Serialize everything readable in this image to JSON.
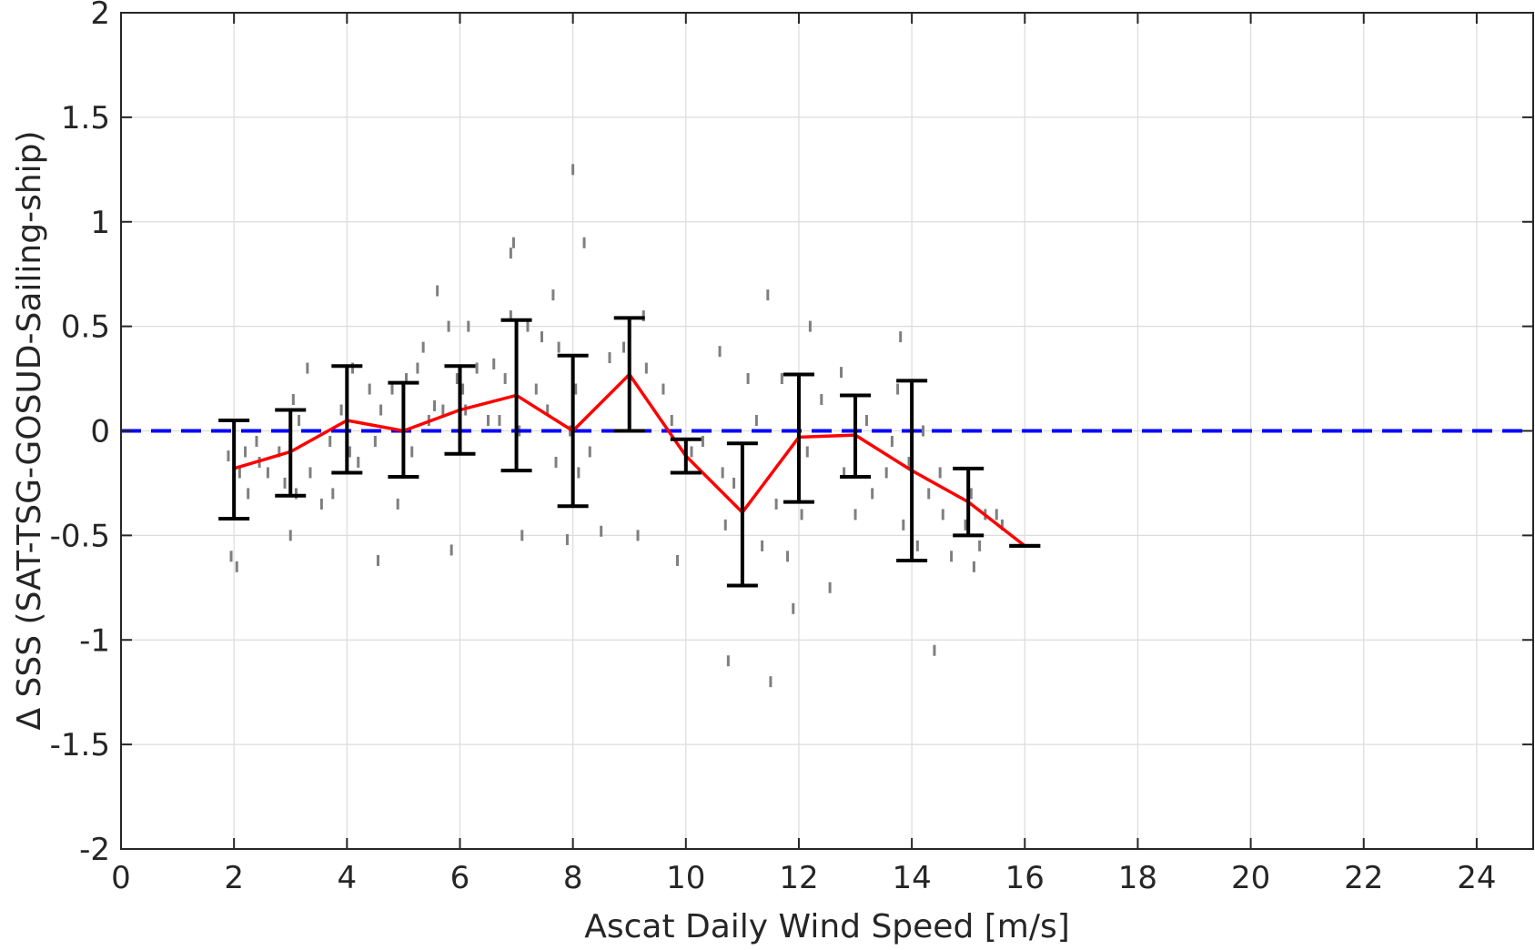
{
  "chart_data": {
    "type": "scatter",
    "title": "",
    "xlabel": "Ascat Daily Wind Speed [m/s]",
    "ylabel": "Δ SSS (SAT-TSG-GOSUD-Sailing-ship)",
    "xlim": [
      0,
      25
    ],
    "ylim": [
      -2,
      2
    ],
    "x_ticks": [
      0,
      2,
      4,
      6,
      8,
      10,
      12,
      14,
      16,
      18,
      20,
      22,
      24
    ],
    "y_ticks": [
      -2,
      -1.5,
      -1,
      -0.5,
      0,
      0.5,
      1,
      1.5,
      2
    ],
    "x_tick_labels": [
      "0",
      "2",
      "4",
      "6",
      "8",
      "10",
      "12",
      "14",
      "16",
      "18",
      "20",
      "22",
      "24"
    ],
    "y_tick_labels": [
      "-2",
      "-1.5",
      "-1",
      "-0.5",
      "0",
      "0.5",
      "1",
      "1.5",
      "2"
    ],
    "grid": true,
    "legend": "none",
    "colors": {
      "scatter": "#7f7f7f",
      "mean_line": "#ff0000",
      "error_bars": "#000000",
      "zero_line": "#0000ff",
      "grid": "#dcdcdc",
      "axis": "#262626"
    },
    "series": [
      {
        "kind": "scatter",
        "points": [
          [
            1.9,
            -0.12
          ],
          [
            1.95,
            -0.6
          ],
          [
            2.05,
            -0.65
          ],
          [
            2.1,
            -0.2
          ],
          [
            2.2,
            -0.1
          ],
          [
            2.25,
            -0.3
          ],
          [
            2.4,
            -0.05
          ],
          [
            2.45,
            -0.15
          ],
          [
            2.6,
            -0.2
          ],
          [
            2.8,
            -0.1
          ],
          [
            2.9,
            -0.25
          ],
          [
            3.05,
            0.15
          ],
          [
            3.1,
            -0.3
          ],
          [
            3.0,
            -0.5
          ],
          [
            3.15,
            0.05
          ],
          [
            3.3,
            0.3
          ],
          [
            3.35,
            -0.2
          ],
          [
            3.55,
            -0.35
          ],
          [
            3.7,
            -0.05
          ],
          [
            3.75,
            -0.3
          ],
          [
            3.9,
            0.1
          ],
          [
            4.05,
            -0.1
          ],
          [
            4.1,
            0.3
          ],
          [
            4.2,
            -0.15
          ],
          [
            4.4,
            0.2
          ],
          [
            4.5,
            -0.05
          ],
          [
            4.55,
            -0.62
          ],
          [
            4.6,
            0.1
          ],
          [
            4.8,
            0.2
          ],
          [
            4.9,
            -0.35
          ],
          [
            5.05,
            0.25
          ],
          [
            5.15,
            -0.1
          ],
          [
            5.25,
            0.3
          ],
          [
            5.35,
            0.4
          ],
          [
            5.45,
            0.05
          ],
          [
            5.55,
            0.12
          ],
          [
            5.6,
            0.67
          ],
          [
            5.7,
            0.1
          ],
          [
            5.8,
            0.5
          ],
          [
            5.85,
            -0.57
          ],
          [
            5.95,
            0.25
          ],
          [
            6.05,
            0.2
          ],
          [
            6.1,
            0.1
          ],
          [
            6.15,
            0.5
          ],
          [
            6.3,
            0.3
          ],
          [
            6.5,
            0.05
          ],
          [
            6.6,
            0.32
          ],
          [
            6.7,
            0.05
          ],
          [
            6.8,
            0.25
          ],
          [
            6.9,
            0.55
          ],
          [
            6.9,
            0.85
          ],
          [
            6.95,
            0.9
          ],
          [
            7.0,
            0.4
          ],
          [
            7.05,
            0.0
          ],
          [
            7.1,
            -0.5
          ],
          [
            7.2,
            0.5
          ],
          [
            7.35,
            0.2
          ],
          [
            7.45,
            0.45
          ],
          [
            7.55,
            0.1
          ],
          [
            7.65,
            0.65
          ],
          [
            7.7,
            -0.15
          ],
          [
            7.75,
            0.4
          ],
          [
            7.9,
            -0.52
          ],
          [
            7.95,
            0.0
          ],
          [
            8.0,
            1.25
          ],
          [
            8.05,
            0.2
          ],
          [
            8.1,
            -0.2
          ],
          [
            8.2,
            0.9
          ],
          [
            8.3,
            -0.1
          ],
          [
            8.5,
            -0.48
          ],
          [
            8.65,
            0.35
          ],
          [
            8.9,
            0.4
          ],
          [
            9.0,
            0.2
          ],
          [
            9.15,
            -0.5
          ],
          [
            9.25,
            0.55
          ],
          [
            9.3,
            0.3
          ],
          [
            9.6,
            0.2
          ],
          [
            9.75,
            0.05
          ],
          [
            9.85,
            -0.62
          ],
          [
            10.1,
            -0.1
          ],
          [
            10.3,
            -0.05
          ],
          [
            10.6,
            0.38
          ],
          [
            10.65,
            -0.2
          ],
          [
            10.7,
            -0.45
          ],
          [
            10.75,
            -1.1
          ],
          [
            10.85,
            -0.25
          ],
          [
            11.0,
            -0.55
          ],
          [
            11.1,
            0.25
          ],
          [
            11.25,
            0.05
          ],
          [
            11.35,
            -0.55
          ],
          [
            11.45,
            0.65
          ],
          [
            11.5,
            -1.2
          ],
          [
            11.6,
            -0.35
          ],
          [
            11.7,
            0.25
          ],
          [
            11.8,
            -0.6
          ],
          [
            11.9,
            -0.85
          ],
          [
            12.05,
            -0.4
          ],
          [
            12.15,
            -0.1
          ],
          [
            12.2,
            0.5
          ],
          [
            12.4,
            0.15
          ],
          [
            12.55,
            -0.75
          ],
          [
            12.75,
            0.28
          ],
          [
            12.8,
            -0.2
          ],
          [
            13.0,
            -0.4
          ],
          [
            13.2,
            0.05
          ],
          [
            13.3,
            -0.3
          ],
          [
            13.55,
            -0.2
          ],
          [
            13.65,
            -0.05
          ],
          [
            13.75,
            0.2
          ],
          [
            13.8,
            0.45
          ],
          [
            13.85,
            -0.45
          ],
          [
            13.95,
            -0.15
          ],
          [
            14.1,
            -0.55
          ],
          [
            14.2,
            0.0
          ],
          [
            14.3,
            -0.3
          ],
          [
            14.4,
            -1.05
          ],
          [
            14.5,
            -0.2
          ],
          [
            14.55,
            -0.4
          ],
          [
            14.7,
            -0.6
          ],
          [
            14.95,
            -0.45
          ],
          [
            15.05,
            -0.3
          ],
          [
            15.1,
            -0.65
          ],
          [
            15.2,
            -0.55
          ],
          [
            15.3,
            -0.4
          ],
          [
            15.5,
            -0.4
          ],
          [
            15.6,
            -0.45
          ]
        ]
      },
      {
        "kind": "line",
        "x": [
          2,
          3,
          4,
          5,
          6,
          7,
          8,
          9,
          10,
          11,
          12,
          13,
          14,
          15,
          16
        ],
        "y": [
          -0.18,
          -0.1,
          0.05,
          0.0,
          0.1,
          0.17,
          0.0,
          0.27,
          -0.12,
          -0.39,
          -0.03,
          -0.02,
          -0.19,
          -0.34,
          -0.55
        ]
      },
      {
        "kind": "errorbar",
        "x": [
          2,
          3,
          4,
          5,
          6,
          7,
          8,
          9,
          10,
          11,
          12,
          13,
          14,
          15,
          16
        ],
        "low": [
          -0.42,
          -0.31,
          -0.2,
          -0.22,
          -0.11,
          -0.19,
          -0.36,
          0.0,
          -0.2,
          -0.74,
          -0.34,
          -0.22,
          -0.62,
          -0.5,
          -0.55
        ],
        "high": [
          0.05,
          0.1,
          0.31,
          0.23,
          0.31,
          0.53,
          0.36,
          0.54,
          -0.04,
          -0.06,
          0.27,
          0.17,
          0.24,
          -0.18,
          -0.55
        ]
      },
      {
        "kind": "hline",
        "y": 0
      }
    ]
  }
}
